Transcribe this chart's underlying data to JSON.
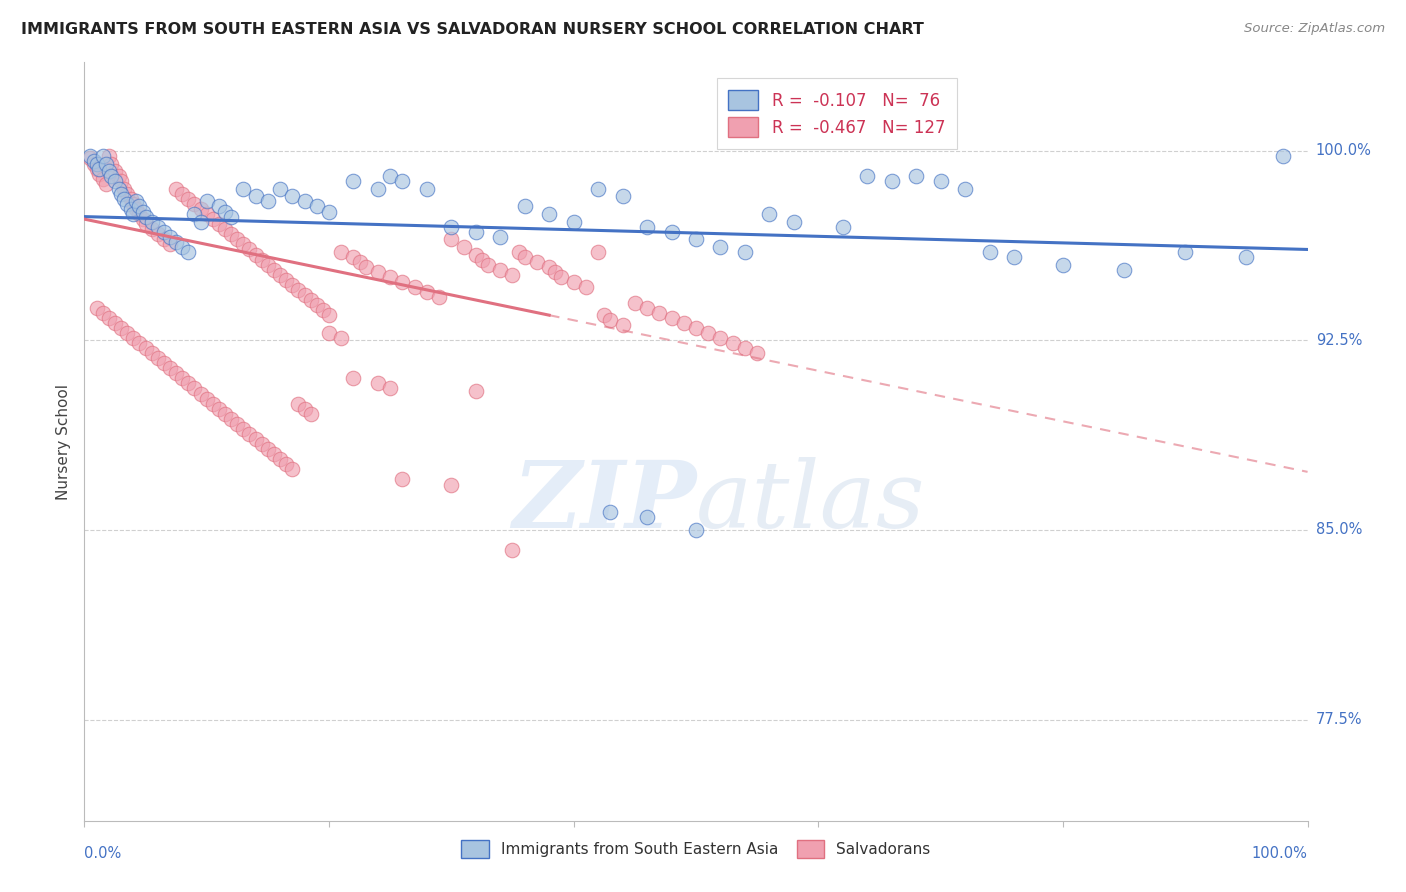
{
  "title": "IMMIGRANTS FROM SOUTH EASTERN ASIA VS SALVADORAN NURSERY SCHOOL CORRELATION CHART",
  "source": "Source: ZipAtlas.com",
  "ylabel": "Nursery School",
  "ytick_labels": [
    "100.0%",
    "92.5%",
    "85.0%",
    "77.5%"
  ],
  "ytick_values": [
    1.0,
    0.925,
    0.85,
    0.775
  ],
  "xlim": [
    0.0,
    1.0
  ],
  "ylim": [
    0.735,
    1.035
  ],
  "blue_R": -0.107,
  "blue_N": 76,
  "pink_R": -0.467,
  "pink_N": 127,
  "legend_label_blue": "Immigrants from South Eastern Asia",
  "legend_label_pink": "Salvadorans",
  "blue_color": "#a8c4e0",
  "pink_color": "#f0a0b0",
  "blue_line_color": "#4472c4",
  "pink_line_color": "#e07080",
  "blue_trendline": [
    [
      0.0,
      0.974
    ],
    [
      1.0,
      0.961
    ]
  ],
  "pink_trendline_solid": [
    [
      0.0,
      0.973
    ],
    [
      0.38,
      0.935
    ]
  ],
  "pink_trendline_dashed": [
    [
      0.38,
      0.935
    ],
    [
      1.0,
      0.873
    ]
  ],
  "blue_scatter": [
    [
      0.005,
      0.998
    ],
    [
      0.008,
      0.996
    ],
    [
      0.01,
      0.995
    ],
    [
      0.012,
      0.993
    ],
    [
      0.015,
      0.998
    ],
    [
      0.018,
      0.995
    ],
    [
      0.02,
      0.992
    ],
    [
      0.022,
      0.99
    ],
    [
      0.025,
      0.988
    ],
    [
      0.028,
      0.985
    ],
    [
      0.03,
      0.983
    ],
    [
      0.032,
      0.981
    ],
    [
      0.035,
      0.979
    ],
    [
      0.038,
      0.977
    ],
    [
      0.04,
      0.975
    ],
    [
      0.042,
      0.98
    ],
    [
      0.045,
      0.978
    ],
    [
      0.048,
      0.976
    ],
    [
      0.05,
      0.974
    ],
    [
      0.055,
      0.972
    ],
    [
      0.06,
      0.97
    ],
    [
      0.065,
      0.968
    ],
    [
      0.07,
      0.966
    ],
    [
      0.075,
      0.964
    ],
    [
      0.08,
      0.962
    ],
    [
      0.085,
      0.96
    ],
    [
      0.09,
      0.975
    ],
    [
      0.095,
      0.972
    ],
    [
      0.1,
      0.98
    ],
    [
      0.11,
      0.978
    ],
    [
      0.115,
      0.976
    ],
    [
      0.12,
      0.974
    ],
    [
      0.13,
      0.985
    ],
    [
      0.14,
      0.982
    ],
    [
      0.15,
      0.98
    ],
    [
      0.16,
      0.985
    ],
    [
      0.17,
      0.982
    ],
    [
      0.18,
      0.98
    ],
    [
      0.19,
      0.978
    ],
    [
      0.2,
      0.976
    ],
    [
      0.22,
      0.988
    ],
    [
      0.24,
      0.985
    ],
    [
      0.25,
      0.99
    ],
    [
      0.26,
      0.988
    ],
    [
      0.28,
      0.985
    ],
    [
      0.3,
      0.97
    ],
    [
      0.32,
      0.968
    ],
    [
      0.34,
      0.966
    ],
    [
      0.36,
      0.978
    ],
    [
      0.38,
      0.975
    ],
    [
      0.4,
      0.972
    ],
    [
      0.42,
      0.985
    ],
    [
      0.44,
      0.982
    ],
    [
      0.46,
      0.97
    ],
    [
      0.48,
      0.968
    ],
    [
      0.5,
      0.965
    ],
    [
      0.52,
      0.962
    ],
    [
      0.54,
      0.96
    ],
    [
      0.56,
      0.975
    ],
    [
      0.58,
      0.972
    ],
    [
      0.62,
      0.97
    ],
    [
      0.64,
      0.99
    ],
    [
      0.66,
      0.988
    ],
    [
      0.68,
      0.99
    ],
    [
      0.7,
      0.988
    ],
    [
      0.72,
      0.985
    ],
    [
      0.74,
      0.96
    ],
    [
      0.76,
      0.958
    ],
    [
      0.8,
      0.955
    ],
    [
      0.85,
      0.953
    ],
    [
      0.9,
      0.96
    ],
    [
      0.95,
      0.958
    ],
    [
      0.98,
      0.998
    ],
    [
      0.43,
      0.857
    ],
    [
      0.46,
      0.855
    ],
    [
      0.5,
      0.85
    ]
  ],
  "pink_scatter": [
    [
      0.005,
      0.997
    ],
    [
      0.008,
      0.995
    ],
    [
      0.01,
      0.993
    ],
    [
      0.012,
      0.991
    ],
    [
      0.015,
      0.989
    ],
    [
      0.018,
      0.987
    ],
    [
      0.02,
      0.998
    ],
    [
      0.022,
      0.995
    ],
    [
      0.025,
      0.992
    ],
    [
      0.028,
      0.99
    ],
    [
      0.03,
      0.988
    ],
    [
      0.032,
      0.985
    ],
    [
      0.035,
      0.983
    ],
    [
      0.038,
      0.981
    ],
    [
      0.04,
      0.979
    ],
    [
      0.042,
      0.977
    ],
    [
      0.045,
      0.975
    ],
    [
      0.048,
      0.973
    ],
    [
      0.05,
      0.971
    ],
    [
      0.055,
      0.969
    ],
    [
      0.06,
      0.967
    ],
    [
      0.065,
      0.965
    ],
    [
      0.07,
      0.963
    ],
    [
      0.075,
      0.985
    ],
    [
      0.08,
      0.983
    ],
    [
      0.085,
      0.981
    ],
    [
      0.09,
      0.979
    ],
    [
      0.095,
      0.977
    ],
    [
      0.1,
      0.975
    ],
    [
      0.105,
      0.973
    ],
    [
      0.11,
      0.971
    ],
    [
      0.115,
      0.969
    ],
    [
      0.12,
      0.967
    ],
    [
      0.125,
      0.965
    ],
    [
      0.13,
      0.963
    ],
    [
      0.135,
      0.961
    ],
    [
      0.14,
      0.959
    ],
    [
      0.145,
      0.957
    ],
    [
      0.15,
      0.955
    ],
    [
      0.155,
      0.953
    ],
    [
      0.16,
      0.951
    ],
    [
      0.165,
      0.949
    ],
    [
      0.17,
      0.947
    ],
    [
      0.175,
      0.945
    ],
    [
      0.18,
      0.943
    ],
    [
      0.185,
      0.941
    ],
    [
      0.19,
      0.939
    ],
    [
      0.195,
      0.937
    ],
    [
      0.2,
      0.935
    ],
    [
      0.21,
      0.96
    ],
    [
      0.22,
      0.958
    ],
    [
      0.225,
      0.956
    ],
    [
      0.23,
      0.954
    ],
    [
      0.24,
      0.952
    ],
    [
      0.25,
      0.95
    ],
    [
      0.26,
      0.948
    ],
    [
      0.27,
      0.946
    ],
    [
      0.28,
      0.944
    ],
    [
      0.29,
      0.942
    ],
    [
      0.3,
      0.965
    ],
    [
      0.31,
      0.962
    ],
    [
      0.32,
      0.959
    ],
    [
      0.325,
      0.957
    ],
    [
      0.33,
      0.955
    ],
    [
      0.34,
      0.953
    ],
    [
      0.35,
      0.951
    ],
    [
      0.355,
      0.96
    ],
    [
      0.36,
      0.958
    ],
    [
      0.37,
      0.956
    ],
    [
      0.38,
      0.954
    ],
    [
      0.385,
      0.952
    ],
    [
      0.39,
      0.95
    ],
    [
      0.4,
      0.948
    ],
    [
      0.41,
      0.946
    ],
    [
      0.42,
      0.96
    ],
    [
      0.425,
      0.935
    ],
    [
      0.43,
      0.933
    ],
    [
      0.44,
      0.931
    ],
    [
      0.45,
      0.94
    ],
    [
      0.46,
      0.938
    ],
    [
      0.47,
      0.936
    ],
    [
      0.48,
      0.934
    ],
    [
      0.49,
      0.932
    ],
    [
      0.5,
      0.93
    ],
    [
      0.51,
      0.928
    ],
    [
      0.52,
      0.926
    ],
    [
      0.53,
      0.924
    ],
    [
      0.54,
      0.922
    ],
    [
      0.55,
      0.92
    ],
    [
      0.01,
      0.938
    ],
    [
      0.015,
      0.936
    ],
    [
      0.02,
      0.934
    ],
    [
      0.025,
      0.932
    ],
    [
      0.03,
      0.93
    ],
    [
      0.035,
      0.928
    ],
    [
      0.04,
      0.926
    ],
    [
      0.045,
      0.924
    ],
    [
      0.05,
      0.922
    ],
    [
      0.055,
      0.92
    ],
    [
      0.06,
      0.918
    ],
    [
      0.065,
      0.916
    ],
    [
      0.07,
      0.914
    ],
    [
      0.075,
      0.912
    ],
    [
      0.08,
      0.91
    ],
    [
      0.085,
      0.908
    ],
    [
      0.09,
      0.906
    ],
    [
      0.095,
      0.904
    ],
    [
      0.1,
      0.902
    ],
    [
      0.105,
      0.9
    ],
    [
      0.11,
      0.898
    ],
    [
      0.115,
      0.896
    ],
    [
      0.12,
      0.894
    ],
    [
      0.125,
      0.892
    ],
    [
      0.13,
      0.89
    ],
    [
      0.135,
      0.888
    ],
    [
      0.14,
      0.886
    ],
    [
      0.145,
      0.884
    ],
    [
      0.15,
      0.882
    ],
    [
      0.155,
      0.88
    ],
    [
      0.16,
      0.878
    ],
    [
      0.165,
      0.876
    ],
    [
      0.17,
      0.874
    ],
    [
      0.175,
      0.9
    ],
    [
      0.18,
      0.898
    ],
    [
      0.185,
      0.896
    ],
    [
      0.2,
      0.928
    ],
    [
      0.21,
      0.926
    ],
    [
      0.22,
      0.91
    ],
    [
      0.24,
      0.908
    ],
    [
      0.25,
      0.906
    ],
    [
      0.26,
      0.87
    ],
    [
      0.3,
      0.868
    ],
    [
      0.32,
      0.905
    ],
    [
      0.35,
      0.842
    ]
  ],
  "watermark_zip": "ZIP",
  "watermark_atlas": "atlas",
  "grid_color": "#d0d0d0",
  "background_color": "#ffffff"
}
